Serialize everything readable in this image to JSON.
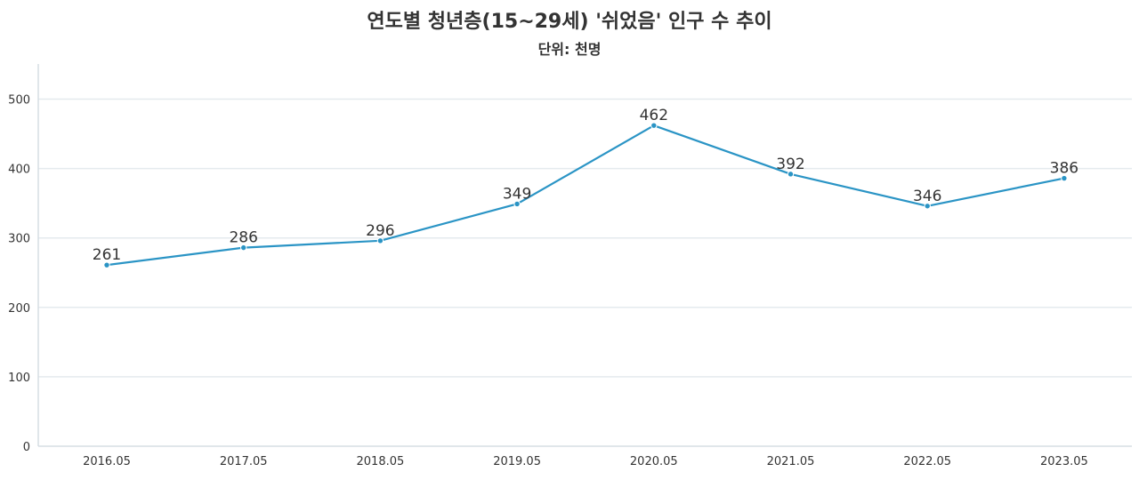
{
  "chart_data": {
    "type": "line",
    "title": "연도별 청년층(15~29세) '쉬었음' 인구 수 추이",
    "subtitle": "단위: 천명",
    "xlabel": "",
    "ylabel": "",
    "categories": [
      "2016.05",
      "2017.05",
      "2018.05",
      "2019.05",
      "2020.05",
      "2021.05",
      "2022.05",
      "2023.05"
    ],
    "series": [
      {
        "values": [
          261,
          286,
          296,
          349,
          462,
          392,
          346,
          386
        ]
      }
    ],
    "yticks": [
      0,
      100,
      200,
      300,
      400,
      500
    ],
    "ylim": [
      0,
      550
    ],
    "grid": true,
    "legend": "none",
    "line_color": "#2a94c5",
    "grid_color": "#e4eaee",
    "axis_color": "#d5dde3"
  }
}
